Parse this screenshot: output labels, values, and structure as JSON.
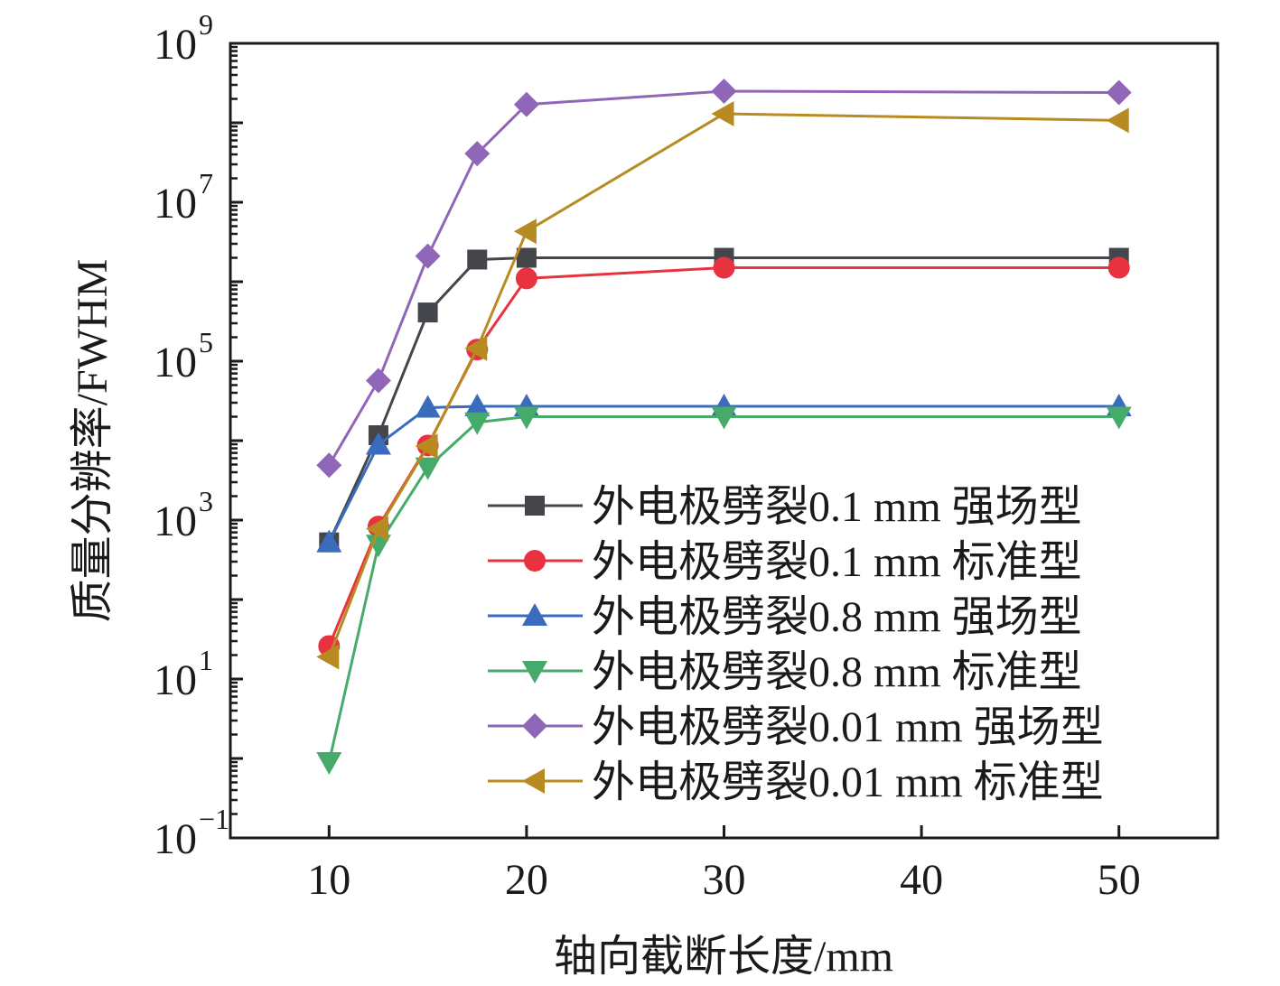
{
  "chart_data": {
    "type": "line",
    "title": "",
    "xlabel": "轴向截断长度/mm",
    "ylabel": "质量分辨率/FWHM",
    "xlim": [
      5,
      55
    ],
    "ylim": [
      0.1,
      1000000000
    ],
    "yscale": "log",
    "x_ticks": [
      10,
      20,
      30,
      40,
      50
    ],
    "y_tick_labels": [
      {
        "base": "10",
        "exp": "9",
        "value": 1000000000
      },
      {
        "base": "10",
        "exp": "7",
        "value": 10000000
      },
      {
        "base": "10",
        "exp": "5",
        "value": 100000
      },
      {
        "base": "10",
        "exp": "3",
        "value": 1000
      },
      {
        "base": "10",
        "exp": "1",
        "value": 10
      },
      {
        "base": "10",
        "exp": "−1",
        "value": 0.1
      }
    ],
    "grid": false,
    "legend_position": "bottom-right",
    "x": [
      10,
      12.5,
      15,
      17.5,
      20,
      30,
      50
    ],
    "series": [
      {
        "name": "外电极劈裂0.1 mm 强场型",
        "color": "#45464b",
        "marker": "square",
        "values": [
          525,
          11700,
          410000,
          1900000,
          2000000,
          2000000,
          2000000
        ]
      },
      {
        "name": "外电极劈裂0.1 mm 标准型",
        "color": "#e8323f",
        "marker": "circle",
        "values": [
          26,
          830,
          8700,
          140000,
          1100000,
          1500000,
          1500000
        ]
      },
      {
        "name": "外电极劈裂0.8 mm 强场型",
        "color": "#3a6bbd",
        "marker": "triangle-up",
        "values": [
          525,
          8900,
          26000,
          27000,
          27000,
          27000,
          27000
        ]
      },
      {
        "name": "外电极劈裂0.8 mm 标准型",
        "color": "#46ab6a",
        "marker": "triangle-down",
        "values": [
          0.9,
          490,
          4600,
          17000,
          20000,
          20000,
          20000
        ]
      },
      {
        "name": "外电极劈裂0.01 mm 强场型",
        "color": "#9066b8",
        "marker": "diamond",
        "values": [
          4900,
          57000,
          2100000,
          41000000,
          170000000,
          250000000,
          240000000
        ]
      },
      {
        "name": "外电极劈裂0.01 mm 标准型",
        "color": "#b78b22",
        "marker": "triangle-left",
        "values": [
          19,
          780,
          8500,
          145000,
          4300000,
          130000000,
          107000000
        ]
      }
    ]
  }
}
